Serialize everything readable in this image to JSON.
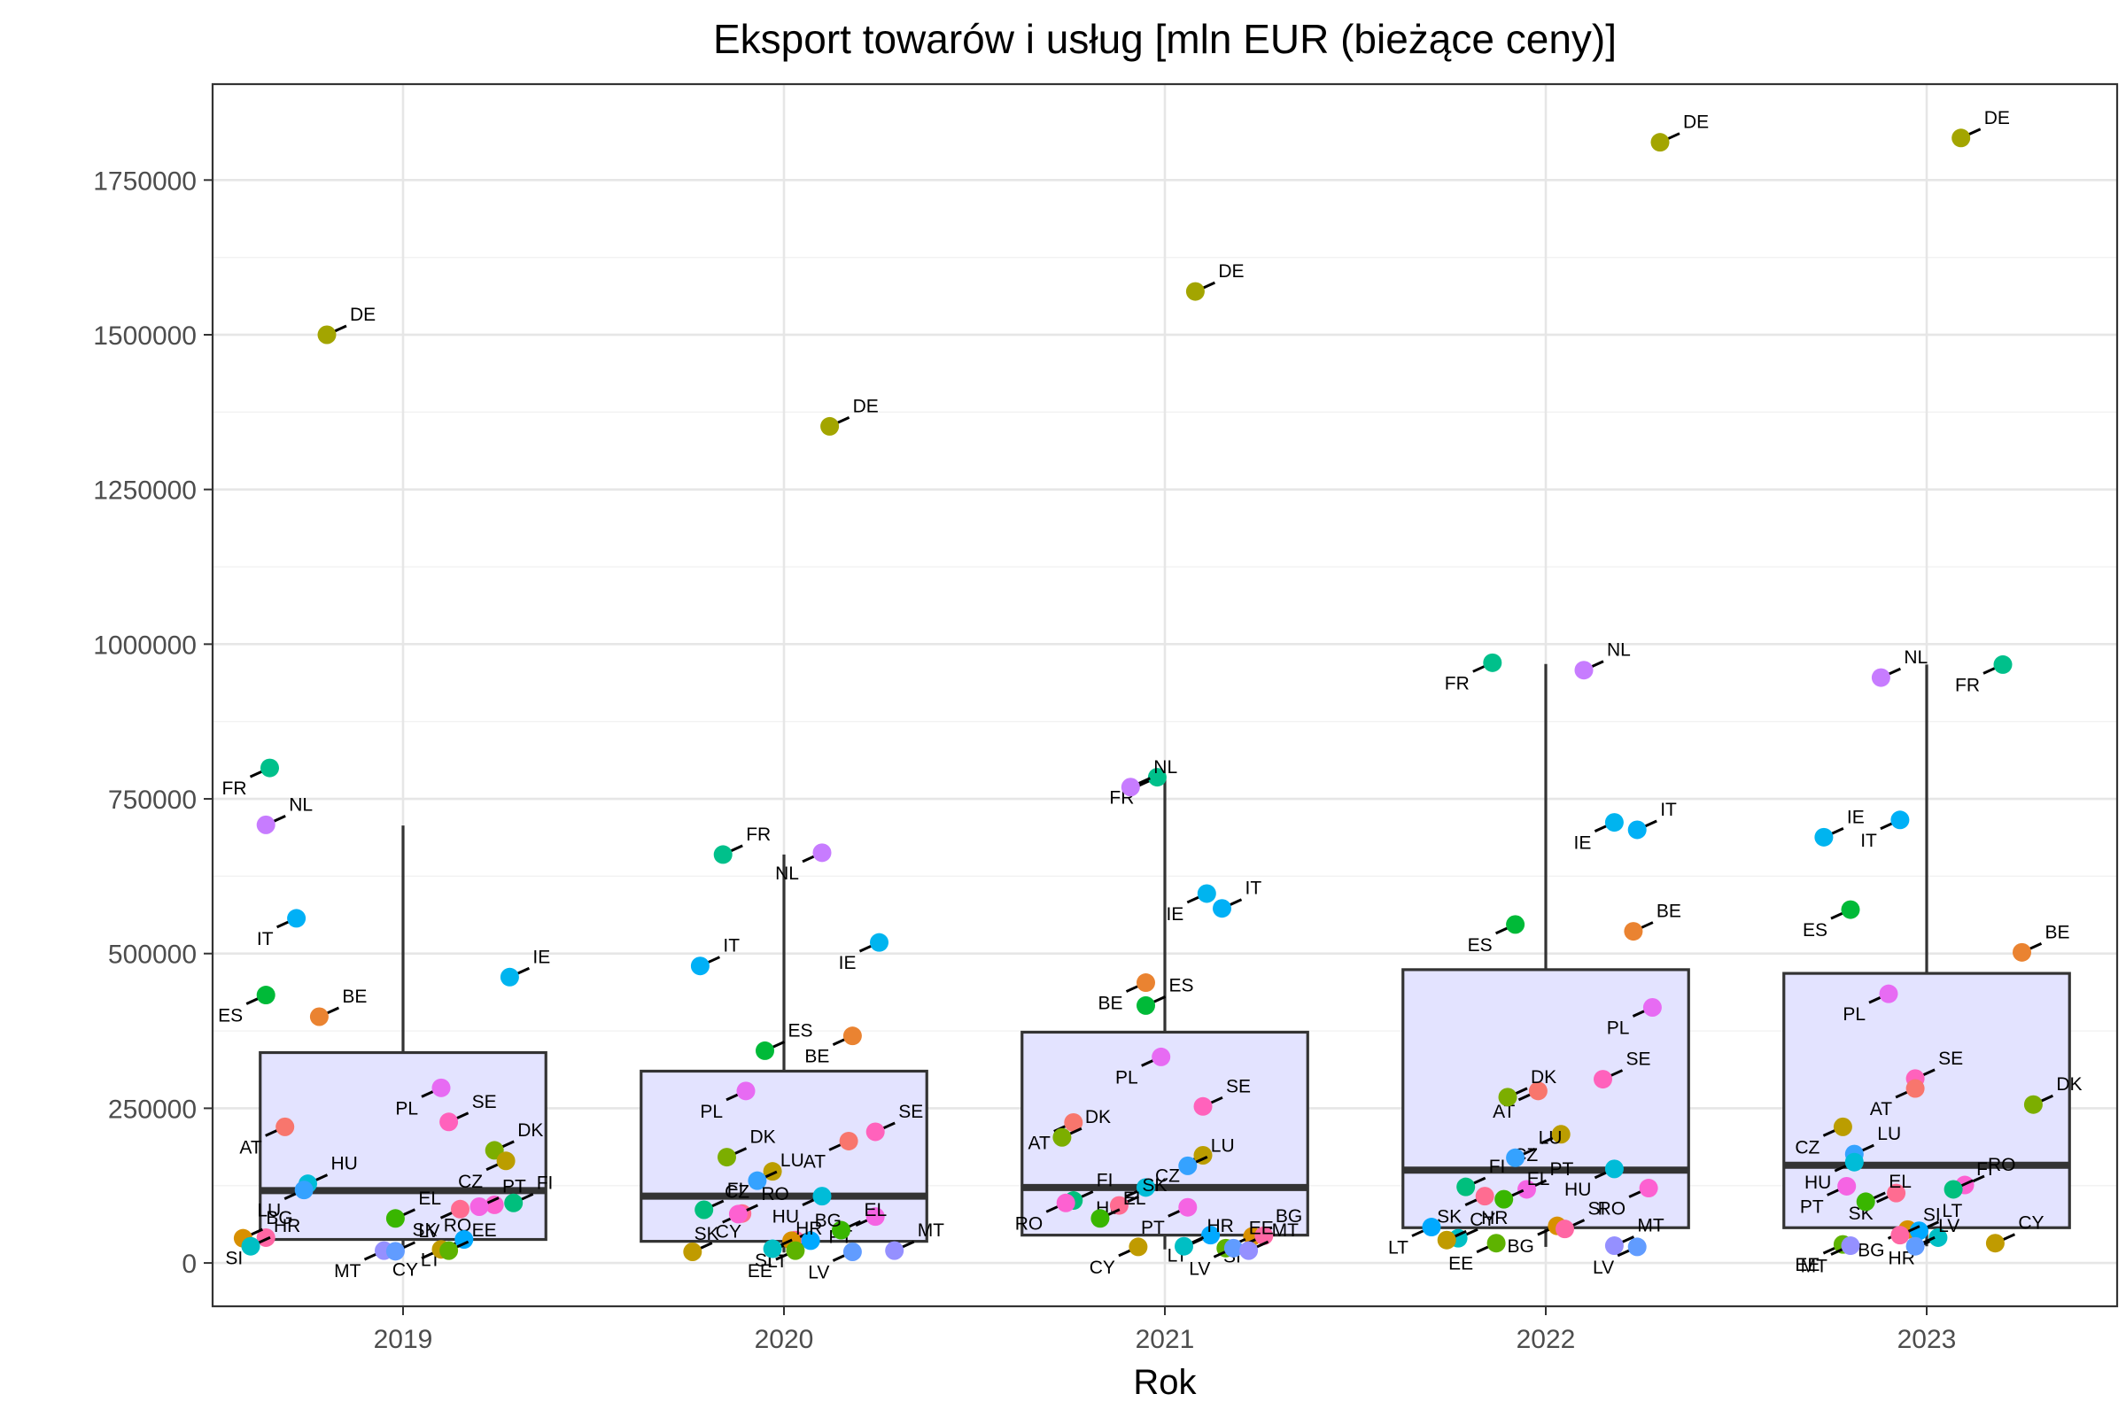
{
  "chart_data": {
    "type": "scatter",
    "overlay": "boxplot",
    "title": "Eksport towarów i usług [mln EUR (bieżące ceny)]",
    "xlabel": "Rok",
    "ylabel": "",
    "categories": [
      "2019",
      "2020",
      "2021",
      "2022",
      "2023"
    ],
    "ylim": [
      -70000,
      1905000
    ],
    "y_ticks": [
      0,
      250000,
      500000,
      750000,
      1000000,
      1250000,
      1500000,
      1750000
    ],
    "y_tick_labels": [
      "0",
      "250000",
      "500000",
      "750000",
      "1000000",
      "1250000",
      "1500000",
      "1750000"
    ],
    "grid": true,
    "legend": "none",
    "boxes": [
      {
        "category": "2019",
        "q1": 38000,
        "median": 117000,
        "q3": 340000,
        "whisker_low": 18000,
        "whisker_high": 707000
      },
      {
        "category": "2020",
        "q1": 35000,
        "median": 108000,
        "q3": 310000,
        "whisker_low": 17000,
        "whisker_high": 660000
      },
      {
        "category": "2021",
        "q1": 45000,
        "median": 122000,
        "q3": 373000,
        "whisker_low": 22000,
        "whisker_high": 783000
      },
      {
        "category": "2022",
        "q1": 57000,
        "median": 150000,
        "q3": 474000,
        "whisker_low": 26000,
        "whisker_high": 968000
      },
      {
        "category": "2023",
        "q1": 57000,
        "median": 158000,
        "q3": 468000,
        "whisker_low": 27000,
        "whisker_high": 967000
      }
    ],
    "country_colors": {
      "AT": "#F8766D",
      "BE": "#EA8331",
      "BG": "#D89000",
      "CY": "#C09B00",
      "CZ": "#BB9D00",
      "DE": "#A3A500",
      "DK": "#7CAE00",
      "EE": "#5EB300",
      "EL": "#39B600",
      "ES": "#00BA38",
      "FI": "#00BF7D",
      "FR": "#00C08B",
      "HR": "#00BFC4",
      "HU": "#00BCD8",
      "IE": "#00B4EF",
      "IT": "#00B0F6",
      "LT": "#00A9FF",
      "LU": "#35A2FF",
      "LV": "#619CFF",
      "MT": "#9590FF",
      "NL": "#C77CFF",
      "PL": "#E76BF3",
      "PT": "#F564E3",
      "RO": "#FD61D1",
      "SE": "#FF62BC",
      "SI": "#FF67A4",
      "SK": "#FF6C91"
    },
    "series": [
      {
        "category": "2019",
        "points": [
          {
            "label": "DE",
            "y": 1500000,
            "jitter": -0.2
          },
          {
            "label": "FR",
            "y": 800000,
            "jitter": -0.35
          },
          {
            "label": "NL",
            "y": 708000,
            "jitter": -0.36
          },
          {
            "label": "IT",
            "y": 557000,
            "jitter": -0.28
          },
          {
            "label": "IE",
            "y": 462000,
            "jitter": 0.28
          },
          {
            "label": "ES",
            "y": 433000,
            "jitter": -0.36
          },
          {
            "label": "BE",
            "y": 398000,
            "jitter": -0.22
          },
          {
            "label": "PL",
            "y": 283000,
            "jitter": 0.1
          },
          {
            "label": "SE",
            "y": 228000,
            "jitter": 0.12
          },
          {
            "label": "AT",
            "y": 220000,
            "jitter": -0.31
          },
          {
            "label": "DK",
            "y": 182000,
            "jitter": 0.24
          },
          {
            "label": "CZ",
            "y": 165000,
            "jitter": 0.27
          },
          {
            "label": "HU",
            "y": 128000,
            "jitter": -0.25
          },
          {
            "label": "LU",
            "y": 118000,
            "jitter": -0.26
          },
          {
            "label": "FI",
            "y": 97000,
            "jitter": 0.29
          },
          {
            "label": "RO",
            "y": 94000,
            "jitter": 0.24
          },
          {
            "label": "PT",
            "y": 91000,
            "jitter": 0.2
          },
          {
            "label": "SK",
            "y": 87000,
            "jitter": 0.15
          },
          {
            "label": "EL",
            "y": 72000,
            "jitter": -0.02
          },
          {
            "label": "SI",
            "y": 41000,
            "jitter": -0.36
          },
          {
            "label": "BG",
            "y": 40000,
            "jitter": -0.42
          },
          {
            "label": "LT",
            "y": 38000,
            "jitter": 0.16
          },
          {
            "label": "HR",
            "y": 27000,
            "jitter": -0.4
          },
          {
            "label": "CY",
            "y": 22000,
            "jitter": 0.1
          },
          {
            "label": "EE",
            "y": 20000,
            "jitter": 0.12
          },
          {
            "label": "MT",
            "y": 20000,
            "jitter": -0.05
          },
          {
            "label": "LV",
            "y": 19000,
            "jitter": -0.02
          }
        ]
      },
      {
        "category": "2020",
        "points": [
          {
            "label": "DE",
            "y": 1352000,
            "jitter": 0.12
          },
          {
            "label": "NL",
            "y": 663000,
            "jitter": 0.1
          },
          {
            "label": "FR",
            "y": 660000,
            "jitter": -0.16
          },
          {
            "label": "IE",
            "y": 518000,
            "jitter": 0.25
          },
          {
            "label": "IT",
            "y": 480000,
            "jitter": -0.22
          },
          {
            "label": "BE",
            "y": 367000,
            "jitter": 0.18
          },
          {
            "label": "ES",
            "y": 343000,
            "jitter": -0.05
          },
          {
            "label": "PL",
            "y": 278000,
            "jitter": -0.1
          },
          {
            "label": "SE",
            "y": 212000,
            "jitter": 0.24
          },
          {
            "label": "AT",
            "y": 197000,
            "jitter": 0.17
          },
          {
            "label": "DK",
            "y": 171000,
            "jitter": -0.15
          },
          {
            "label": "CZ",
            "y": 148000,
            "jitter": -0.03
          },
          {
            "label": "LU",
            "y": 133000,
            "jitter": -0.07
          },
          {
            "label": "HU",
            "y": 108000,
            "jitter": 0.1
          },
          {
            "label": "FI",
            "y": 86000,
            "jitter": -0.21
          },
          {
            "label": "SK",
            "y": 80000,
            "jitter": -0.11
          },
          {
            "label": "RO",
            "y": 79000,
            "jitter": -0.12
          },
          {
            "label": "PT",
            "y": 75000,
            "jitter": 0.24
          },
          {
            "label": "EL",
            "y": 53000,
            "jitter": 0.15
          },
          {
            "label": "SI",
            "y": 37000,
            "jitter": 0.03
          },
          {
            "label": "BG",
            "y": 36000,
            "jitter": 0.02
          },
          {
            "label": "LT",
            "y": 36000,
            "jitter": 0.07
          },
          {
            "label": "HR",
            "y": 23000,
            "jitter": -0.03
          },
          {
            "label": "EE",
            "y": 20000,
            "jitter": 0.03
          },
          {
            "label": "CY",
            "y": 18000,
            "jitter": -0.24
          },
          {
            "label": "LV",
            "y": 18000,
            "jitter": 0.18
          },
          {
            "label": "MT",
            "y": 20000,
            "jitter": 0.29
          }
        ]
      },
      {
        "category": "2021",
        "points": [
          {
            "label": "DE",
            "y": 1570000,
            "jitter": 0.08
          },
          {
            "label": "FR",
            "y": 785000,
            "jitter": -0.02
          },
          {
            "label": "NL",
            "y": 769000,
            "jitter": -0.09
          },
          {
            "label": "IE",
            "y": 597000,
            "jitter": 0.11
          },
          {
            "label": "IT",
            "y": 573000,
            "jitter": 0.15
          },
          {
            "label": "BE",
            "y": 453000,
            "jitter": -0.05
          },
          {
            "label": "ES",
            "y": 416000,
            "jitter": -0.05
          },
          {
            "label": "PL",
            "y": 333000,
            "jitter": -0.01
          },
          {
            "label": "SE",
            "y": 253000,
            "jitter": 0.1
          },
          {
            "label": "AT",
            "y": 227000,
            "jitter": -0.24
          },
          {
            "label": "DK",
            "y": 203000,
            "jitter": -0.27
          },
          {
            "label": "CZ",
            "y": 174000,
            "jitter": 0.1
          },
          {
            "label": "LU",
            "y": 157000,
            "jitter": 0.06
          },
          {
            "label": "HU",
            "y": 122000,
            "jitter": -0.05
          },
          {
            "label": "FI",
            "y": 101000,
            "jitter": -0.24
          },
          {
            "label": "RO",
            "y": 97000,
            "jitter": -0.26
          },
          {
            "label": "SK",
            "y": 93000,
            "jitter": -0.12
          },
          {
            "label": "PT",
            "y": 90000,
            "jitter": 0.06
          },
          {
            "label": "EL",
            "y": 72000,
            "jitter": -0.17
          },
          {
            "label": "LT",
            "y": 45000,
            "jitter": 0.12
          },
          {
            "label": "BG",
            "y": 43000,
            "jitter": 0.23
          },
          {
            "label": "SI",
            "y": 44000,
            "jitter": 0.26
          },
          {
            "label": "HR",
            "y": 27000,
            "jitter": 0.05
          },
          {
            "label": "CY",
            "y": 26000,
            "jitter": -0.07
          },
          {
            "label": "EE",
            "y": 24000,
            "jitter": 0.16
          },
          {
            "label": "LV",
            "y": 24000,
            "jitter": 0.18
          },
          {
            "label": "MT",
            "y": 20000,
            "jitter": 0.22
          }
        ]
      },
      {
        "category": "2022",
        "points": [
          {
            "label": "DE",
            "y": 1811000,
            "jitter": 0.3
          },
          {
            "label": "FR",
            "y": 970000,
            "jitter": -0.14
          },
          {
            "label": "NL",
            "y": 958000,
            "jitter": 0.1
          },
          {
            "label": "IE",
            "y": 712000,
            "jitter": 0.18
          },
          {
            "label": "IT",
            "y": 700000,
            "jitter": 0.24
          },
          {
            "label": "ES",
            "y": 547000,
            "jitter": -0.08
          },
          {
            "label": "BE",
            "y": 536000,
            "jitter": 0.23
          },
          {
            "label": "PL",
            "y": 413000,
            "jitter": 0.28
          },
          {
            "label": "SE",
            "y": 297000,
            "jitter": 0.15
          },
          {
            "label": "AT",
            "y": 278000,
            "jitter": -0.02
          },
          {
            "label": "DK",
            "y": 268000,
            "jitter": -0.1
          },
          {
            "label": "CZ",
            "y": 208000,
            "jitter": 0.04
          },
          {
            "label": "LU",
            "y": 170000,
            "jitter": -0.08
          },
          {
            "label": "HU",
            "y": 152000,
            "jitter": 0.18
          },
          {
            "label": "FI",
            "y": 123000,
            "jitter": -0.21
          },
          {
            "label": "RO",
            "y": 121000,
            "jitter": 0.27
          },
          {
            "label": "PT",
            "y": 119000,
            "jitter": -0.05
          },
          {
            "label": "SK",
            "y": 108000,
            "jitter": -0.16
          },
          {
            "label": "EL",
            "y": 103000,
            "jitter": -0.11
          },
          {
            "label": "BG",
            "y": 60000,
            "jitter": 0.03
          },
          {
            "label": "SI",
            "y": 55000,
            "jitter": 0.05
          },
          {
            "label": "LT",
            "y": 58000,
            "jitter": -0.3
          },
          {
            "label": "HR",
            "y": 40000,
            "jitter": -0.23
          },
          {
            "label": "EE",
            "y": 32000,
            "jitter": -0.13
          },
          {
            "label": "MT",
            "y": 28000,
            "jitter": 0.18
          },
          {
            "label": "LV",
            "y": 26000,
            "jitter": 0.24
          },
          {
            "label": "CY",
            "y": 37000,
            "jitter": -0.26
          }
        ]
      },
      {
        "category": "2023",
        "points": [
          {
            "label": "DE",
            "y": 1818000,
            "jitter": 0.09
          },
          {
            "label": "FR",
            "y": 967000,
            "jitter": 0.2
          },
          {
            "label": "NL",
            "y": 946000,
            "jitter": -0.12
          },
          {
            "label": "IT",
            "y": 716000,
            "jitter": -0.07
          },
          {
            "label": "IE",
            "y": 688000,
            "jitter": -0.27
          },
          {
            "label": "ES",
            "y": 571000,
            "jitter": -0.2
          },
          {
            "label": "BE",
            "y": 502000,
            "jitter": 0.25
          },
          {
            "label": "PL",
            "y": 435000,
            "jitter": -0.1
          },
          {
            "label": "SE",
            "y": 298000,
            "jitter": -0.03
          },
          {
            "label": "AT",
            "y": 282000,
            "jitter": -0.03
          },
          {
            "label": "DK",
            "y": 256000,
            "jitter": 0.28
          },
          {
            "label": "CZ",
            "y": 220000,
            "jitter": -0.22
          },
          {
            "label": "LU",
            "y": 176000,
            "jitter": -0.19
          },
          {
            "label": "HU",
            "y": 163000,
            "jitter": -0.19
          },
          {
            "label": "RO",
            "y": 126000,
            "jitter": 0.1
          },
          {
            "label": "PT",
            "y": 124000,
            "jitter": -0.21
          },
          {
            "label": "FI",
            "y": 119000,
            "jitter": 0.07
          },
          {
            "label": "SK",
            "y": 113000,
            "jitter": -0.08
          },
          {
            "label": "EL",
            "y": 99000,
            "jitter": -0.16
          },
          {
            "label": "BG",
            "y": 54000,
            "jitter": -0.05
          },
          {
            "label": "LT",
            "y": 52000,
            "jitter": -0.02
          },
          {
            "label": "HR",
            "y": 41000,
            "jitter": 0.03
          },
          {
            "label": "CY",
            "y": 32000,
            "jitter": 0.18
          },
          {
            "label": "EE",
            "y": 30000,
            "jitter": -0.22
          },
          {
            "label": "SI",
            "y": 45000,
            "jitter": -0.07
          },
          {
            "label": "MT",
            "y": 28000,
            "jitter": -0.2
          },
          {
            "label": "LV",
            "y": 27000,
            "jitter": -0.03
          }
        ]
      }
    ]
  }
}
